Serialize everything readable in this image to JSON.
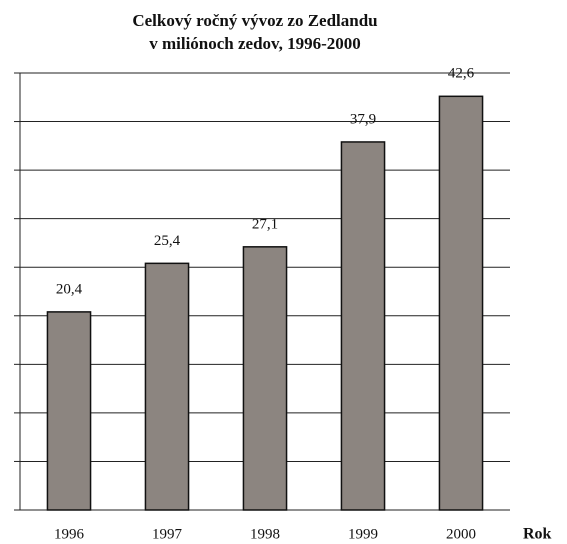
{
  "chart_data": {
    "type": "bar",
    "title": "Celkový ročný vývoz zo Zedlandu",
    "subtitle": "v miliónoch zedov, 1996-2000",
    "x_label": "Rok",
    "categories": [
      "1996",
      "1997",
      "1998",
      "1999",
      "2000"
    ],
    "values": [
      20.4,
      25.4,
      27.1,
      37.9,
      42.6
    ],
    "value_labels": [
      "20,4",
      "25,4",
      "27,1",
      "37,9",
      "42,6"
    ],
    "color": "#8c8580",
    "ylim": [
      0,
      45
    ],
    "yticks": [
      0,
      5,
      10,
      15,
      20,
      25,
      30,
      35,
      40,
      45
    ],
    "grid": true
  }
}
